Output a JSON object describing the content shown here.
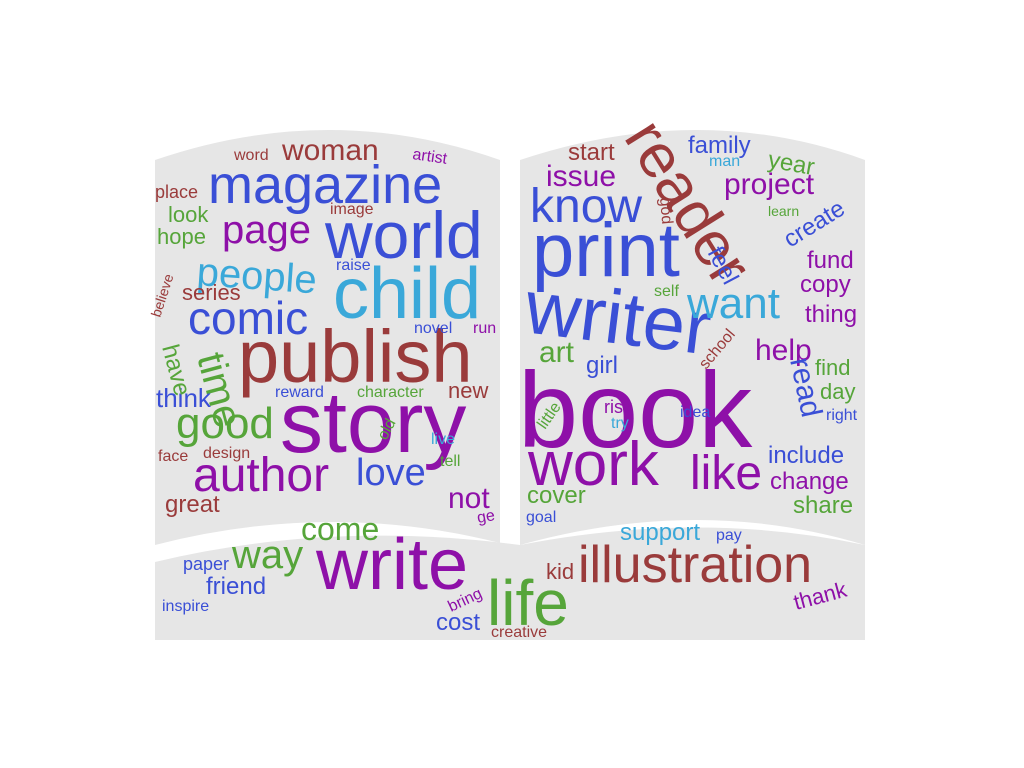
{
  "colors": {
    "background": "#ffffff",
    "book_fill": "#e6e6e6",
    "purple": "#8e10a8",
    "blue": "#3a4fd6",
    "red": "#9a3b3b",
    "green": "#56a53a",
    "cyan": "#3aa8d9"
  },
  "words": [
    {
      "text": "magazine",
      "color": "blue"
    },
    {
      "text": "world",
      "color": "blue"
    },
    {
      "text": "child",
      "color": "cyan"
    },
    {
      "text": "publish",
      "color": "red"
    },
    {
      "text": "story",
      "color": "purple"
    },
    {
      "text": "author",
      "color": "purple"
    },
    {
      "text": "comic",
      "color": "blue"
    },
    {
      "text": "page",
      "color": "purple"
    },
    {
      "text": "people",
      "color": "cyan"
    },
    {
      "text": "woman",
      "color": "red"
    },
    {
      "text": "good",
      "color": "green"
    },
    {
      "text": "love",
      "color": "blue"
    },
    {
      "text": "time",
      "color": "green"
    },
    {
      "text": "series",
      "color": "red"
    },
    {
      "text": "look",
      "color": "green"
    },
    {
      "text": "hope",
      "color": "green"
    },
    {
      "text": "think",
      "color": "blue"
    },
    {
      "text": "great",
      "color": "red"
    },
    {
      "text": "not",
      "color": "purple"
    },
    {
      "text": "new",
      "color": "red"
    },
    {
      "text": "have",
      "color": "green"
    },
    {
      "text": "place",
      "color": "red"
    },
    {
      "text": "word",
      "color": "red"
    },
    {
      "text": "artist",
      "color": "purple"
    },
    {
      "text": "image",
      "color": "red"
    },
    {
      "text": "raise",
      "color": "blue"
    },
    {
      "text": "believe",
      "color": "red"
    },
    {
      "text": "novel",
      "color": "blue"
    },
    {
      "text": "run",
      "color": "purple"
    },
    {
      "text": "reward",
      "color": "blue"
    },
    {
      "text": "character",
      "color": "green"
    },
    {
      "text": "design",
      "color": "red"
    },
    {
      "text": "face",
      "color": "red"
    },
    {
      "text": "old",
      "color": "green"
    },
    {
      "text": "live",
      "color": "cyan"
    },
    {
      "text": "tell",
      "color": "green"
    },
    {
      "text": "ge",
      "color": "purple"
    },
    {
      "text": "book",
      "color": "purple"
    },
    {
      "text": "reader",
      "color": "red"
    },
    {
      "text": "print",
      "color": "blue"
    },
    {
      "text": "writer",
      "color": "blue"
    },
    {
      "text": "know",
      "color": "blue"
    },
    {
      "text": "work",
      "color": "purple"
    },
    {
      "text": "want",
      "color": "cyan"
    },
    {
      "text": "like",
      "color": "purple"
    },
    {
      "text": "project",
      "color": "purple"
    },
    {
      "text": "issue",
      "color": "purple"
    },
    {
      "text": "start",
      "color": "red"
    },
    {
      "text": "family",
      "color": "blue"
    },
    {
      "text": "year",
      "color": "green"
    },
    {
      "text": "man",
      "color": "cyan"
    },
    {
      "text": "god",
      "color": "red"
    },
    {
      "text": "learn",
      "color": "green"
    },
    {
      "text": "create",
      "color": "blue"
    },
    {
      "text": "fund",
      "color": "purple"
    },
    {
      "text": "copy",
      "color": "purple"
    },
    {
      "text": "thing",
      "color": "purple"
    },
    {
      "text": "feel",
      "color": "blue"
    },
    {
      "text": "self",
      "color": "green"
    },
    {
      "text": "school",
      "color": "red"
    },
    {
      "text": "help",
      "color": "purple"
    },
    {
      "text": "read",
      "color": "blue"
    },
    {
      "text": "find",
      "color": "green"
    },
    {
      "text": "day",
      "color": "green"
    },
    {
      "text": "right",
      "color": "blue"
    },
    {
      "text": "art",
      "color": "green"
    },
    {
      "text": "girl",
      "color": "blue"
    },
    {
      "text": "risk",
      "color": "purple"
    },
    {
      "text": "try",
      "color": "cyan"
    },
    {
      "text": "little",
      "color": "green"
    },
    {
      "text": "idea",
      "color": "blue"
    },
    {
      "text": "include",
      "color": "blue"
    },
    {
      "text": "change",
      "color": "purple"
    },
    {
      "text": "share",
      "color": "green"
    },
    {
      "text": "cover",
      "color": "green"
    },
    {
      "text": "goal",
      "color": "blue"
    },
    {
      "text": "write",
      "color": "purple"
    },
    {
      "text": "illustration",
      "color": "red"
    },
    {
      "text": "life",
      "color": "green"
    },
    {
      "text": "way",
      "color": "green"
    },
    {
      "text": "come",
      "color": "green"
    },
    {
      "text": "friend",
      "color": "blue"
    },
    {
      "text": "paper",
      "color": "blue"
    },
    {
      "text": "inspire",
      "color": "blue"
    },
    {
      "text": "bring",
      "color": "purple"
    },
    {
      "text": "cost",
      "color": "blue"
    },
    {
      "text": "creative",
      "color": "red"
    },
    {
      "text": "kid",
      "color": "red"
    },
    {
      "text": "support",
      "color": "cyan"
    },
    {
      "text": "pay",
      "color": "blue"
    },
    {
      "text": "thank",
      "color": "purple"
    }
  ]
}
